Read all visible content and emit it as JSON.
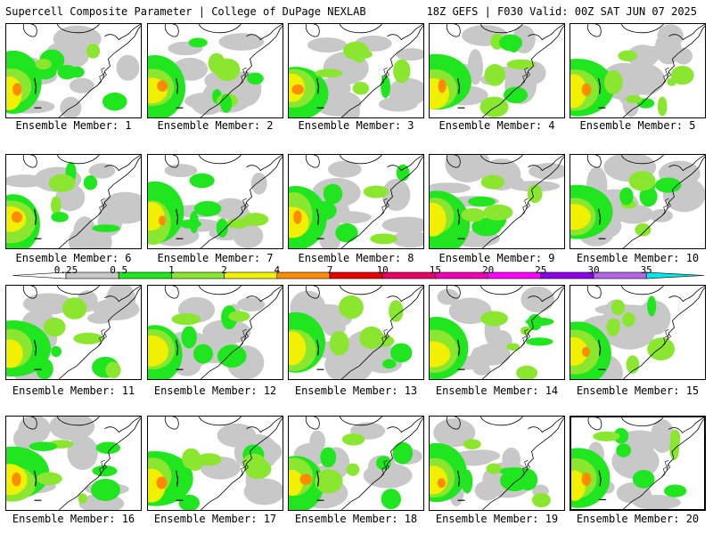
{
  "header": {
    "title": "Supercell Composite Parameter | College of DuPage NEXLAB",
    "run_info": "18Z GEFS | F030 Valid: 00Z SAT JUN 07 2025"
  },
  "caption_prefix": "Ensemble Member: ",
  "members": [
    {
      "number": "1"
    },
    {
      "number": "2"
    },
    {
      "number": "3"
    },
    {
      "number": "4"
    },
    {
      "number": "5"
    },
    {
      "number": "6"
    },
    {
      "number": "7"
    },
    {
      "number": "8"
    },
    {
      "number": "9"
    },
    {
      "number": "10"
    },
    {
      "number": "11"
    },
    {
      "number": "12"
    },
    {
      "number": "13"
    },
    {
      "number": "14"
    },
    {
      "number": "15"
    },
    {
      "number": "16"
    },
    {
      "number": "17"
    },
    {
      "number": "18"
    },
    {
      "number": "19"
    },
    {
      "number": "20"
    }
  ],
  "selected_member": "20",
  "legend": {
    "ticks": [
      "0.25",
      "0.5",
      "1",
      "2",
      "4",
      "7",
      "10",
      "15",
      "20",
      "25",
      "30",
      "35"
    ],
    "colors": [
      "#c8c8c8",
      "#1fe61f",
      "#8ae62e",
      "#f0f000",
      "#ff8c00",
      "#e60000",
      "#e60064",
      "#f000b4",
      "#ff00ff",
      "#8c00e6",
      "#b464e6",
      "#00e6e6"
    ]
  }
}
